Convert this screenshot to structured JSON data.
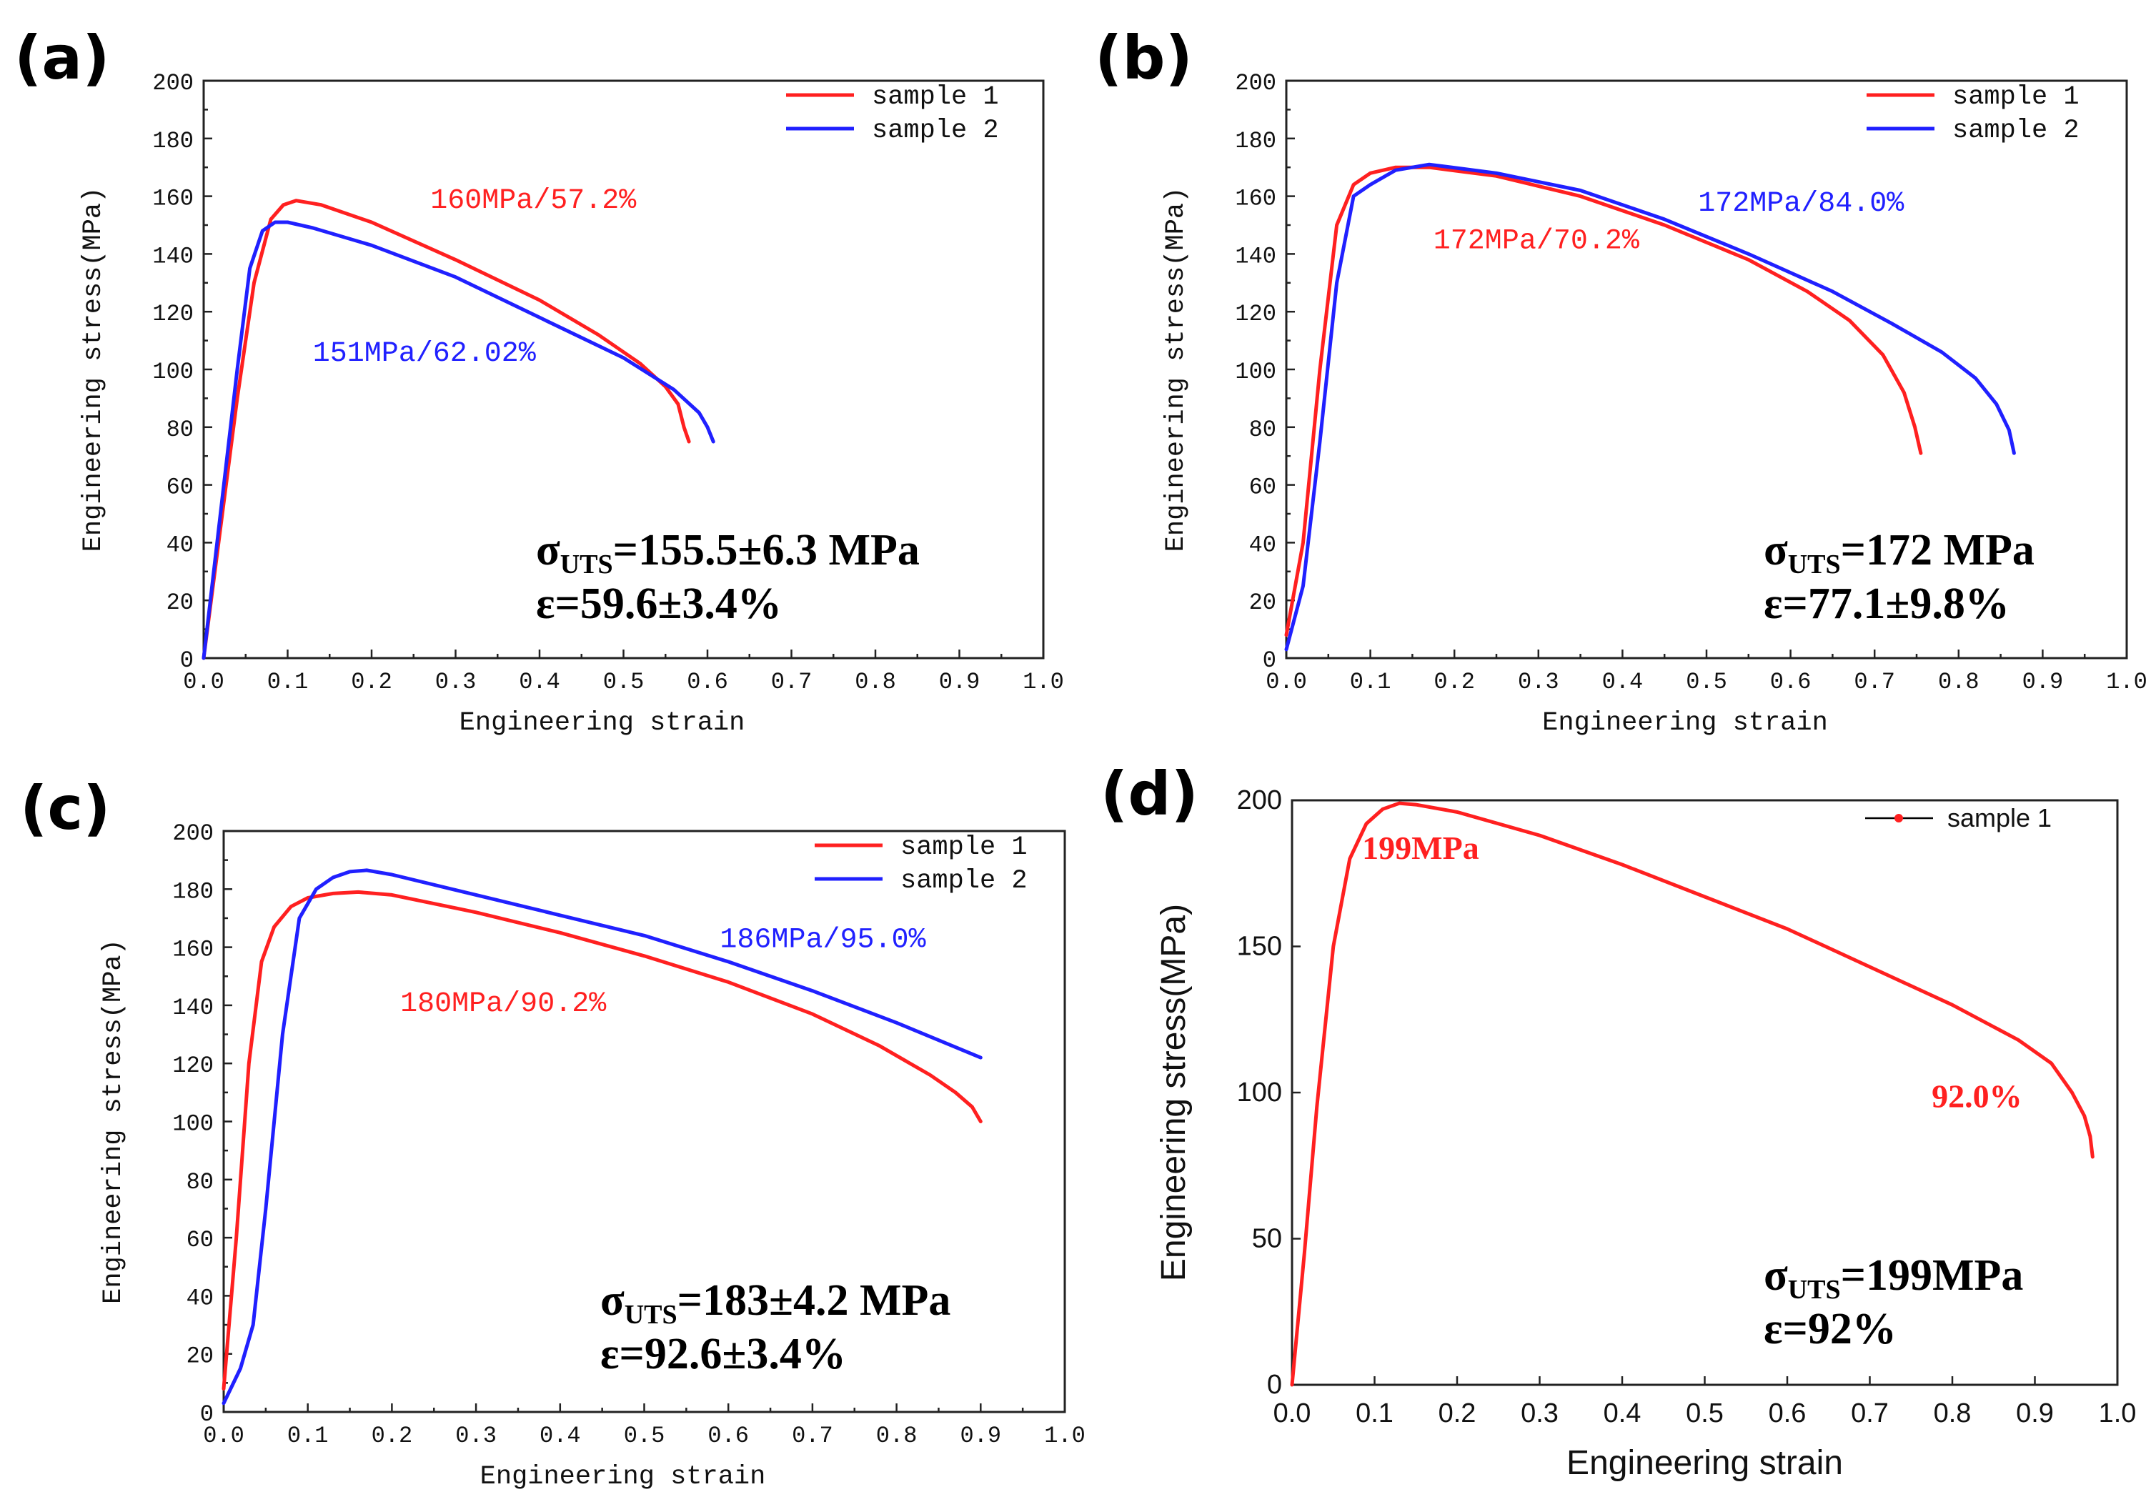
{
  "figure": {
    "colors": {
      "red": "#ff2020",
      "blue": "#2020ff",
      "text": "#111111"
    }
  },
  "chart_data": [
    {
      "id": "a",
      "panel_label": "(a)",
      "type": "line",
      "style": "mono",
      "xlabel": "Engineering strain",
      "ylabel": "Engineering stress(MPa)",
      "xlim": [
        0.0,
        1.0
      ],
      "ylim": [
        0,
        200
      ],
      "xticks": [
        "0.0",
        "0.1",
        "0.2",
        "0.3",
        "0.4",
        "0.5",
        "0.6",
        "0.7",
        "0.8",
        "0.9",
        "1.0"
      ],
      "yticks": [
        "0",
        "20",
        "40",
        "60",
        "80",
        "100",
        "120",
        "140",
        "160",
        "180",
        "200"
      ],
      "legend": {
        "placement": "top-right",
        "entries": [
          "sample 1",
          "sample 2"
        ]
      },
      "series": [
        {
          "name": "sample 1",
          "color": "#ff2020",
          "x": [
            0.0,
            0.02,
            0.04,
            0.06,
            0.08,
            0.095,
            0.11,
            0.14,
            0.2,
            0.3,
            0.4,
            0.47,
            0.52,
            0.55,
            0.565,
            0.572,
            0.578
          ],
          "y": [
            0,
            45,
            90,
            130,
            152,
            157,
            158.5,
            157,
            151,
            138,
            124,
            112,
            102,
            94,
            88,
            80,
            75
          ]
        },
        {
          "name": "sample 2",
          "color": "#2020ff",
          "x": [
            0.0,
            0.02,
            0.04,
            0.055,
            0.07,
            0.085,
            0.1,
            0.13,
            0.2,
            0.3,
            0.4,
            0.5,
            0.56,
            0.59,
            0.6,
            0.607
          ],
          "y": [
            0,
            50,
            100,
            135,
            148,
            151,
            151,
            149,
            143,
            132,
            118,
            104,
            93,
            85,
            80,
            75
          ]
        }
      ],
      "annotations": [
        {
          "text": "160MPa/57.2%",
          "x": 0.27,
          "y": 156,
          "color": "#ff2020"
        },
        {
          "text": "151MPa/62.02%",
          "x": 0.13,
          "y": 103,
          "color": "#2020ff"
        }
      ],
      "summary": {
        "uts_prefix": "σ",
        "uts_sub": "UTS",
        "uts_value": "=155.5±6.3 MPa",
        "strain": "ε=59.6±3.4%"
      }
    },
    {
      "id": "b",
      "panel_label": "(b)",
      "type": "line",
      "style": "mono",
      "xlabel": "Engineering strain",
      "ylabel": "Engineering stress(MPa)",
      "xlim": [
        0.0,
        1.0
      ],
      "ylim": [
        0,
        200
      ],
      "xticks": [
        "0.0",
        "0.1",
        "0.2",
        "0.3",
        "0.4",
        "0.5",
        "0.6",
        "0.7",
        "0.8",
        "0.9",
        "1.0"
      ],
      "yticks": [
        "0",
        "20",
        "40",
        "60",
        "80",
        "100",
        "120",
        "140",
        "160",
        "180",
        "200"
      ],
      "legend": {
        "placement": "top-right",
        "entries": [
          "sample 1",
          "sample 2"
        ]
      },
      "series": [
        {
          "name": "sample 1",
          "color": "#ff2020",
          "x": [
            0.0,
            0.02,
            0.04,
            0.06,
            0.08,
            0.1,
            0.13,
            0.17,
            0.25,
            0.35,
            0.45,
            0.55,
            0.62,
            0.67,
            0.71,
            0.735,
            0.748,
            0.755
          ],
          "y": [
            8,
            40,
            100,
            150,
            164,
            168,
            170,
            170,
            167,
            160,
            150,
            138,
            127,
            117,
            105,
            92,
            80,
            71
          ]
        },
        {
          "name": "sample 2",
          "color": "#2020ff",
          "x": [
            0.0,
            0.02,
            0.04,
            0.06,
            0.08,
            0.1,
            0.13,
            0.17,
            0.25,
            0.35,
            0.45,
            0.55,
            0.65,
            0.72,
            0.78,
            0.82,
            0.845,
            0.86,
            0.866
          ],
          "y": [
            3,
            25,
            75,
            130,
            160,
            164,
            169,
            171,
            168,
            162,
            152,
            140,
            127,
            116,
            106,
            97,
            88,
            79,
            71
          ]
        }
      ],
      "annotations": [
        {
          "text": "172MPa/84.0%",
          "x": 0.49,
          "y": 155,
          "color": "#2020ff"
        },
        {
          "text": "172MPa/70.2%",
          "x": 0.175,
          "y": 142,
          "color": "#ff2020"
        }
      ],
      "summary": {
        "uts_prefix": "σ",
        "uts_sub": "UTS",
        "uts_value": "=172 MPa",
        "strain": "ε=77.1±9.8%"
      }
    },
    {
      "id": "c",
      "panel_label": "(c)",
      "type": "line",
      "style": "mono",
      "xlabel": "Engineering strain",
      "ylabel": "Engineering stress(MPa)",
      "xlim": [
        0.0,
        1.0
      ],
      "ylim": [
        0,
        200
      ],
      "xticks": [
        "0.0",
        "0.1",
        "0.2",
        "0.3",
        "0.4",
        "0.5",
        "0.6",
        "0.7",
        "0.8",
        "0.9",
        "1.0"
      ],
      "yticks": [
        "0",
        "20",
        "40",
        "60",
        "80",
        "100",
        "120",
        "140",
        "160",
        "180",
        "200"
      ],
      "legend": {
        "placement": "top-right",
        "entries": [
          "sample 1",
          "sample 2"
        ]
      },
      "series": [
        {
          "name": "sample 1",
          "color": "#ff2020",
          "x": [
            0.0,
            0.015,
            0.03,
            0.045,
            0.06,
            0.08,
            0.1,
            0.13,
            0.16,
            0.2,
            0.3,
            0.4,
            0.5,
            0.6,
            0.7,
            0.78,
            0.84,
            0.87,
            0.89,
            0.9
          ],
          "y": [
            8,
            60,
            120,
            155,
            167,
            174,
            177,
            178.5,
            179,
            178,
            172,
            165,
            157,
            148,
            137,
            126,
            116,
            110,
            105,
            100
          ]
        },
        {
          "name": "sample 2",
          "color": "#2020ff",
          "x": [
            0.0,
            0.02,
            0.035,
            0.05,
            0.07,
            0.09,
            0.11,
            0.13,
            0.15,
            0.17,
            0.2,
            0.3,
            0.4,
            0.5,
            0.6,
            0.7,
            0.8,
            0.9
          ],
          "y": [
            3,
            15,
            30,
            70,
            130,
            170,
            180,
            184,
            186,
            186.5,
            185,
            178,
            171,
            164,
            155,
            145,
            134,
            122
          ]
        }
      ],
      "annotations": [
        {
          "text": "186MPa/95.0%",
          "x": 0.59,
          "y": 160,
          "color": "#2020ff"
        },
        {
          "text": "180MPa/90.2%",
          "x": 0.21,
          "y": 138,
          "color": "#ff2020"
        }
      ],
      "summary": {
        "uts_prefix": "σ",
        "uts_sub": "UTS",
        "uts_value": "=183±4.2 MPa",
        "strain": "ε=92.6±3.4%"
      }
    },
    {
      "id": "d",
      "panel_label": "(d)",
      "type": "line",
      "style": "sans",
      "xlabel": "Engineering strain",
      "ylabel": "Engineering stress(MPa)",
      "xlim": [
        0.0,
        1.0
      ],
      "ylim": [
        0,
        200
      ],
      "xticks": [
        "0.0",
        "0.1",
        "0.2",
        "0.3",
        "0.4",
        "0.5",
        "0.6",
        "0.7",
        "0.8",
        "0.9",
        "1.0"
      ],
      "yticks": [
        "0",
        "50",
        "100",
        "150",
        "200"
      ],
      "legend": {
        "placement": "top-right",
        "entries": [
          "sample 1"
        ]
      },
      "series": [
        {
          "name": "sample 1",
          "color": "#ff2020",
          "x": [
            0.0,
            0.015,
            0.03,
            0.05,
            0.07,
            0.09,
            0.11,
            0.13,
            0.15,
            0.2,
            0.3,
            0.4,
            0.5,
            0.6,
            0.7,
            0.8,
            0.88,
            0.92,
            0.945,
            0.96,
            0.967,
            0.97
          ],
          "y": [
            0,
            45,
            95,
            150,
            180,
            192,
            197,
            199,
            198.5,
            196,
            188,
            178,
            167,
            156,
            143,
            130,
            118,
            110,
            100,
            92,
            85,
            78
          ]
        }
      ],
      "annotations": [
        {
          "text": "199MPa",
          "x": 0.085,
          "y": 180,
          "color": "#ff2020"
        },
        {
          "text": "92.0%",
          "x": 0.775,
          "y": 95,
          "color": "#ff2020"
        }
      ],
      "summary": {
        "uts_prefix": "σ",
        "uts_sub": "UTS",
        "uts_value": "=199MPa",
        "strain": "ε=92%"
      }
    }
  ]
}
